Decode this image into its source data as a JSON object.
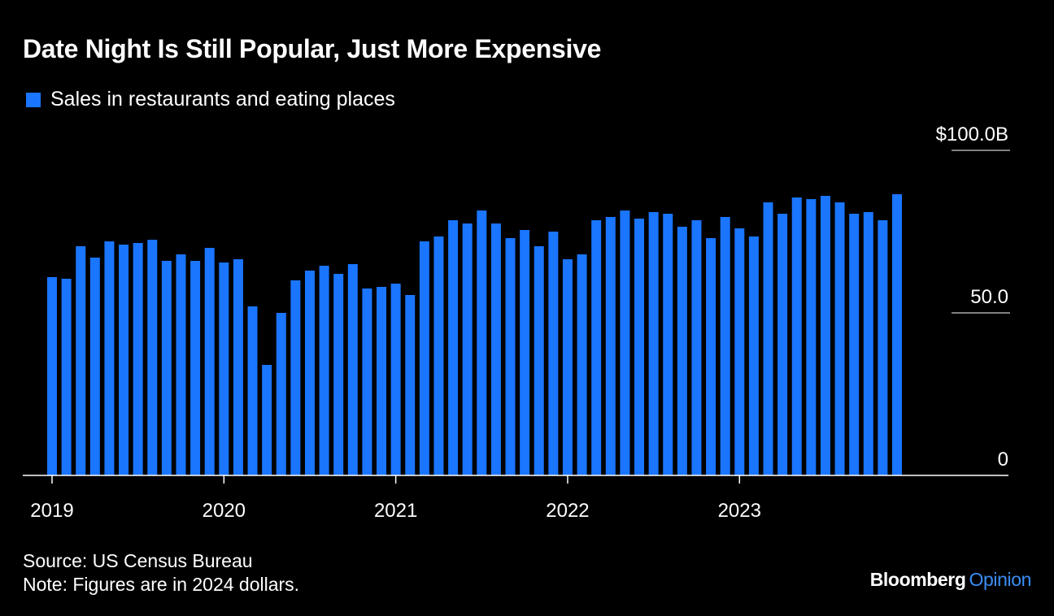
{
  "header": {
    "title": "Date Night Is Still Popular, Just More Expensive"
  },
  "legend": {
    "label": "Sales in restaurants and eating places"
  },
  "footer": {
    "source": "Source: US Census Bureau",
    "note": "Note: Figures are in 2024 dollars."
  },
  "brand": {
    "name": "Bloomberg",
    "suffix": "Opinion"
  },
  "colors": {
    "background": "#000000",
    "bar": "#1a75ff",
    "text": "#ffffff",
    "brand_accent": "#3b8df5"
  },
  "chart_data": {
    "type": "bar",
    "title": "Date Night Is Still Popular, Just More Expensive",
    "xlabel": "",
    "ylabel": "",
    "ylim": [
      0,
      100
    ],
    "yticks": [
      {
        "value": 0,
        "label": "0"
      },
      {
        "value": 50,
        "label": "50.0"
      },
      {
        "value": 100,
        "label": "$100.0B"
      }
    ],
    "xticks": [
      {
        "index": 0,
        "label": "2019"
      },
      {
        "index": 12,
        "label": "2020"
      },
      {
        "index": 24,
        "label": "2021"
      },
      {
        "index": 36,
        "label": "2022"
      },
      {
        "index": 48,
        "label": "2023"
      }
    ],
    "grid": false,
    "legend_position": "top-left",
    "categories": [
      "2019-01",
      "2019-02",
      "2019-03",
      "2019-04",
      "2019-05",
      "2019-06",
      "2019-07",
      "2019-08",
      "2019-09",
      "2019-10",
      "2019-11",
      "2019-12",
      "2020-01",
      "2020-02",
      "2020-03",
      "2020-04",
      "2020-05",
      "2020-06",
      "2020-07",
      "2020-08",
      "2020-09",
      "2020-10",
      "2020-11",
      "2020-12",
      "2021-01",
      "2021-02",
      "2021-03",
      "2021-04",
      "2021-05",
      "2021-06",
      "2021-07",
      "2021-08",
      "2021-09",
      "2021-10",
      "2021-11",
      "2021-12",
      "2022-01",
      "2022-02",
      "2022-03",
      "2022-04",
      "2022-05",
      "2022-06",
      "2022-07",
      "2022-08",
      "2022-09",
      "2022-10",
      "2022-11",
      "2022-12",
      "2023-01",
      "2023-02",
      "2023-03",
      "2023-04",
      "2023-05",
      "2023-06",
      "2023-07",
      "2023-08",
      "2023-09",
      "2023-10",
      "2023-11",
      "2023-12"
    ],
    "series": [
      {
        "name": "Sales in restaurants and eating places",
        "values": [
          61.0,
          60.5,
          70.5,
          67.0,
          72.0,
          71.0,
          71.5,
          72.5,
          66.0,
          68.0,
          66.0,
          70.0,
          65.5,
          66.5,
          52.0,
          34.0,
          50.0,
          60.0,
          63.0,
          64.5,
          62.0,
          65.0,
          57.5,
          58.0,
          59.0,
          55.5,
          72.0,
          73.5,
          78.5,
          77.5,
          81.5,
          77.5,
          73.0,
          75.5,
          70.5,
          75.0,
          66.5,
          68.0,
          78.5,
          79.5,
          81.5,
          79.0,
          81.0,
          80.5,
          76.5,
          78.5,
          73.0,
          79.5,
          76.0,
          73.5,
          84.0,
          80.5,
          85.5,
          85.0,
          86.0,
          84.0,
          80.5,
          81.0,
          78.5,
          86.5
        ]
      }
    ]
  }
}
